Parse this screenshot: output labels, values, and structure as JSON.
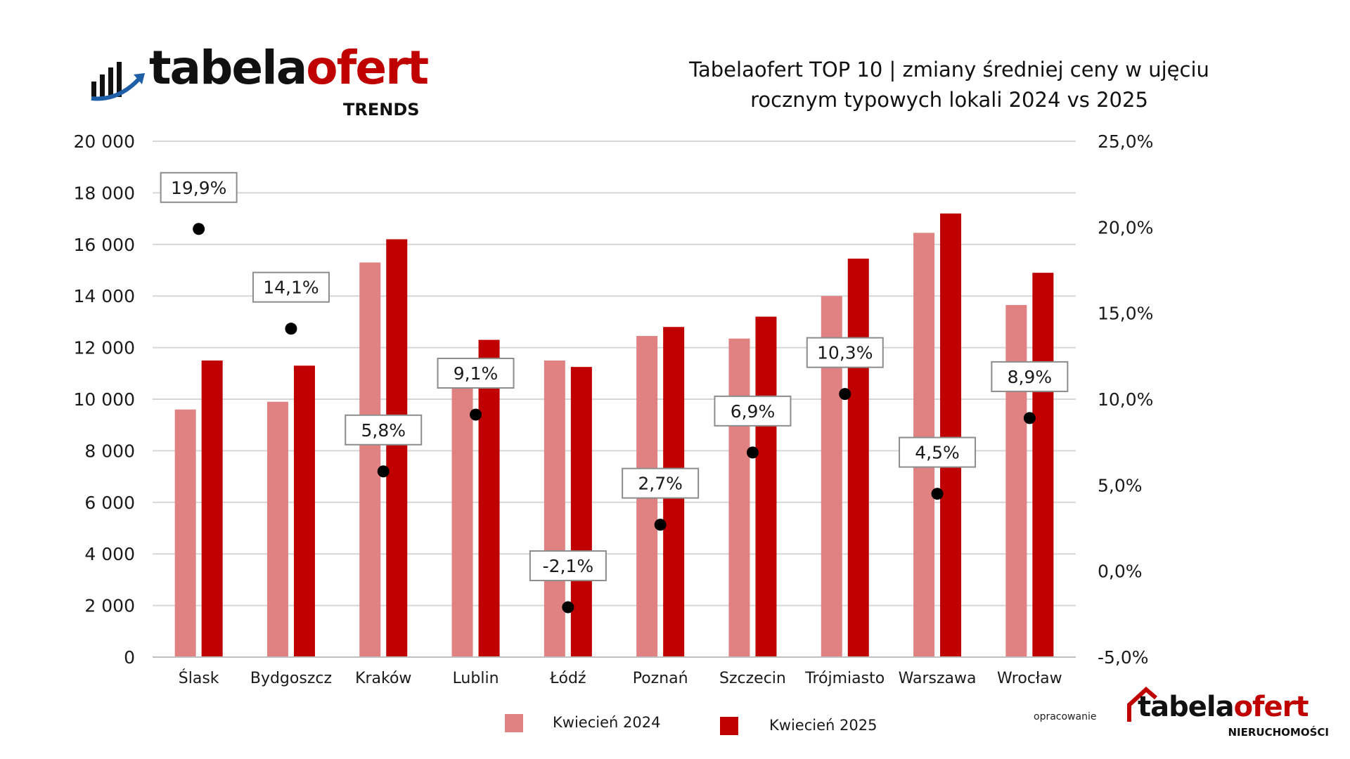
{
  "header": {
    "logo_main_a": "tabela",
    "logo_main_b": "ofert",
    "logo_sub": "TRENDS",
    "title_line1": "Tabelaofert TOP 10 | zmiany średniej ceny w ujęciu",
    "title_line2": "rocznym typowych lokali 2024 vs 2025"
  },
  "colors": {
    "series_2024": "#e08282",
    "series_2025": "#c00000",
    "grid": "#d6d6d6",
    "accent_blue": "#1f5fa8"
  },
  "footer": {
    "credit": "opracowanie",
    "logo_a": "tabela",
    "logo_b": "ofert",
    "logo_sub": "NIERUCHOMOŚCI"
  },
  "chart_data": {
    "type": "bar",
    "categories": [
      "Ślask",
      "Bydgoszcz",
      "Kraków",
      "Lublin",
      "Łódź",
      "Poznań",
      "Szczecin",
      "Trójmiasto",
      "Warszawa",
      "Wrocław"
    ],
    "series": [
      {
        "name": "Kwiecień 2024",
        "values": [
          9600,
          9900,
          15300,
          11250,
          11500,
          12450,
          12350,
          14000,
          16450,
          13650
        ]
      },
      {
        "name": "Kwiecień 2025",
        "values": [
          11500,
          11300,
          16200,
          12300,
          11250,
          12800,
          13200,
          15450,
          17200,
          14900
        ]
      }
    ],
    "change_percent": {
      "values": [
        19.9,
        14.1,
        5.8,
        9.1,
        -2.1,
        2.7,
        6.9,
        10.3,
        4.5,
        8.9
      ],
      "labels": [
        "19,9%",
        "14,1%",
        "5,8%",
        "9,1%",
        "-2,1%",
        "2,7%",
        "6,9%",
        "10,3%",
        "4,5%",
        "8,9%"
      ]
    },
    "y_left": {
      "min": 0,
      "max": 20000,
      "ticks": [
        "0",
        "2 000",
        "4 000",
        "6 000",
        "8 000",
        "10 000",
        "12 000",
        "14 000",
        "16 000",
        "18 000",
        "20 000"
      ]
    },
    "y_right": {
      "min": -5,
      "max": 25,
      "ticks": [
        "-5,0%",
        "0,0%",
        "5,0%",
        "10,0%",
        "15,0%",
        "20,0%",
        "25,0%"
      ]
    },
    "grid": true,
    "legend_position": "bottom"
  }
}
